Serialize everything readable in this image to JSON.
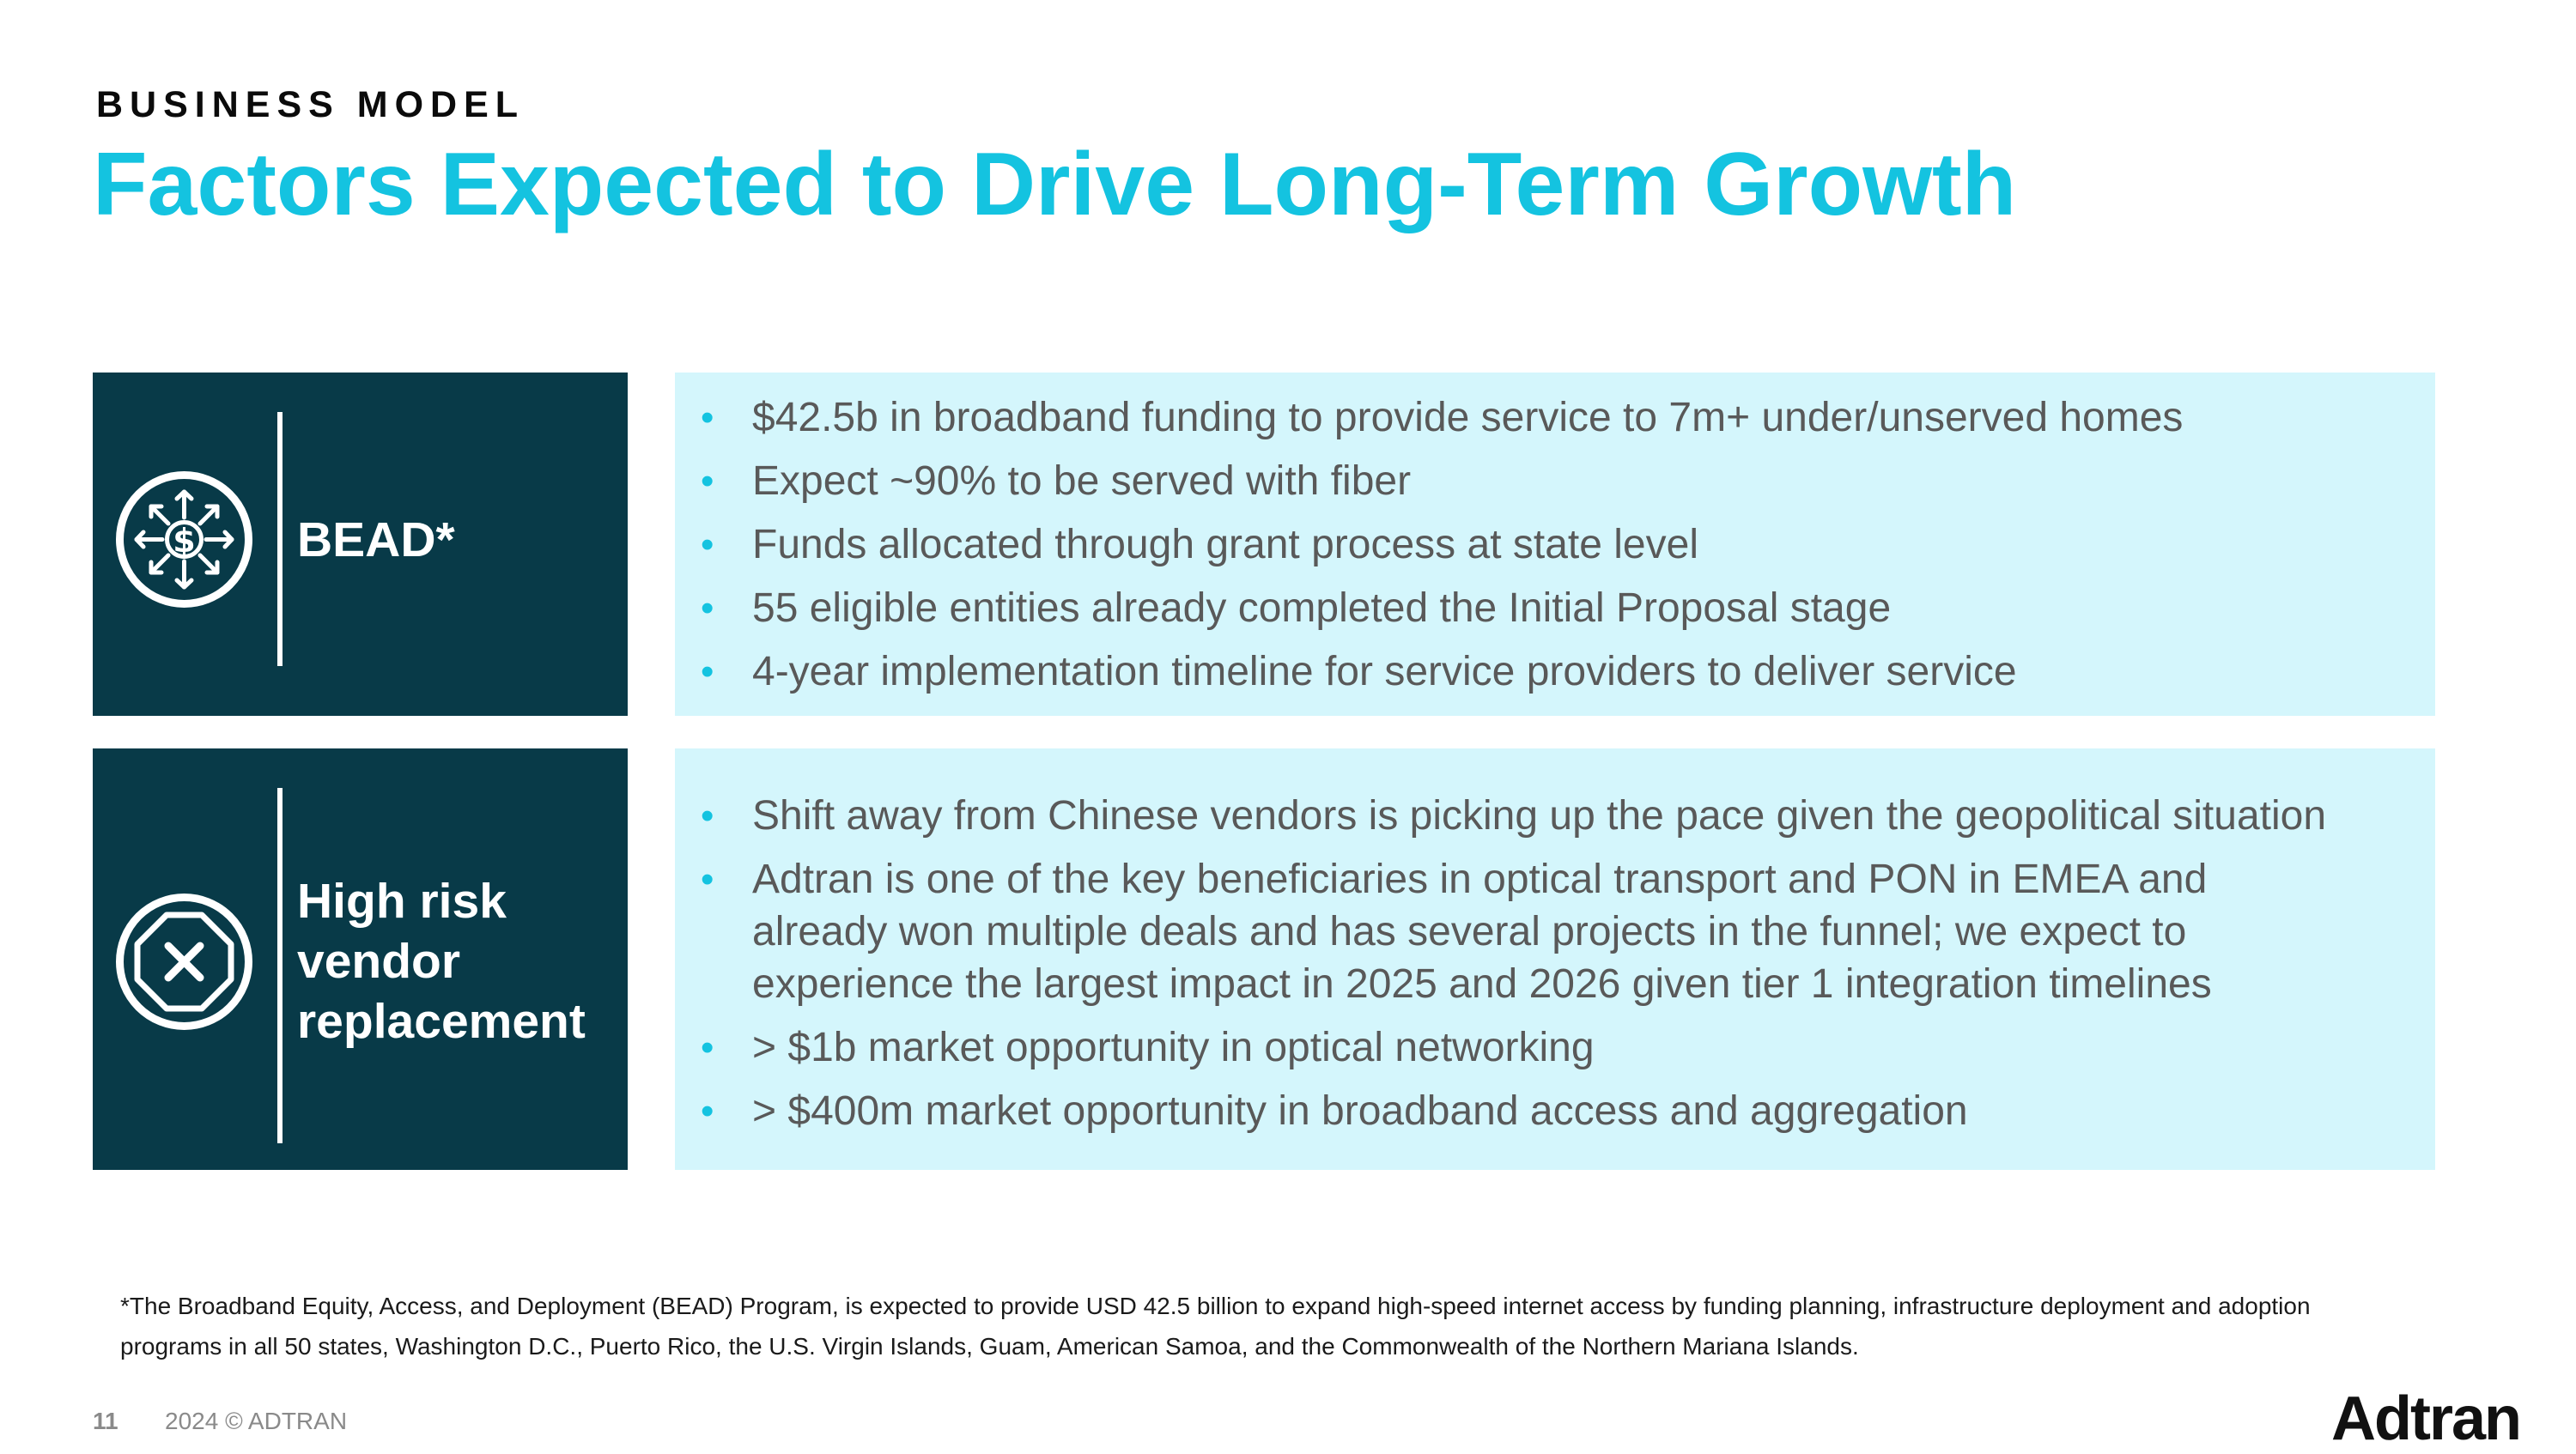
{
  "header": {
    "eyebrow": "BUSINESS MODEL",
    "title": "Factors Expected to Drive Long-Term Growth"
  },
  "rows": [
    {
      "label_lines": [
        "BEAD*"
      ],
      "icon": "money-arrows-icon",
      "bullets": [
        "$42.5b in broadband funding to provide service to 7m+ under/unserved homes",
        "Expect ~90% to be served with fiber",
        "Funds allocated through grant process at state level",
        "55 eligible entities already completed the Initial Proposal stage",
        "4-year implementation timeline for service providers to deliver service"
      ]
    },
    {
      "label_lines": [
        "High risk",
        "vendor",
        "replacement"
      ],
      "icon": "octagon-x-icon",
      "bullets": [
        "Shift away from Chinese vendors is picking up the pace given the geopolitical situation",
        "Adtran is one of the key beneficiaries in optical transport and PON in EMEA and",
        "already won multiple deals and has several projects in the funnel; we expect to",
        "experience the largest impact in 2025 and 2026 given tier 1 integration timelines",
        "> $1b market opportunity in optical networking",
        "> $400m market opportunity in broadband access and aggregation"
      ]
    }
  ],
  "footnote": {
    "line1": "*The Broadband Equity, Access, and Deployment (BEAD) Program, is expected to provide USD 42.5 billion to expand high-speed internet access by funding planning, infrastructure deployment and adoption",
    "line2": "programs in all 50 states, Washington D.C., Puerto Rico, the U.S. Virgin Islands, Guam, American Samoa, and the Commonwealth of the Northern Mariana Islands."
  },
  "footer": {
    "page_number": "11",
    "copyright": "2024 © ADTRAN",
    "logo": "Adtran"
  },
  "colors": {
    "title": "#14c3e0",
    "dark_panel": "#083a48",
    "light_panel": "#d4f6fc",
    "bullet": "#14c3e0",
    "body_text": "#595959"
  }
}
